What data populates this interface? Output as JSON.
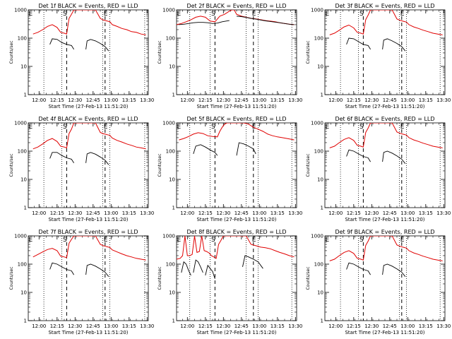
{
  "figure": {
    "y_axis_label": "Counts/sec",
    "x_axis_label": "Start Time (27-Feb-13 11:51:20)",
    "x_tick_labels": [
      "12:00",
      "12:15",
      "12:30",
      "12:45",
      "13:00",
      "13:15",
      "13:30"
    ],
    "y_tick_labels": [
      "1",
      "10",
      "100",
      "1000"
    ],
    "series_colors": {
      "events": "#000000",
      "lld": "#e00000"
    }
  },
  "chart_data": [
    {
      "type": "line",
      "title": "Det 1f BLACK = Events, RED = LLD",
      "markers": [
        "E",
        "S",
        "E"
      ],
      "x_unit": "minutes after 11:51:20",
      "ylim": [
        1,
        1000
      ],
      "xlim": [
        0,
        100
      ],
      "y_scale": "log",
      "series": [
        {
          "x": [
            4,
            8,
            12,
            16,
            20,
            24,
            27,
            30,
            32,
            34,
            36,
            38,
            40,
            42,
            44,
            48,
            52,
            56,
            60,
            62,
            64,
            66,
            68,
            70,
            74,
            78,
            82,
            86,
            90,
            94,
            98
          ],
          "y": [
            140,
            160,
            200,
            260,
            300,
            240,
            160,
            150,
            140,
            500,
            700,
            1000,
            1000,
            1000,
            1000,
            1000,
            1000,
            1000,
            500,
            450,
            420,
            400,
            380,
            300,
            260,
            220,
            200,
            170,
            160,
            140,
            130
          ]
        },
        {
          "x": [
            18,
            20,
            24,
            28,
            32,
            36,
            38
          ],
          "y": [
            60,
            95,
            90,
            70,
            60,
            55,
            40
          ]
        },
        {
          "x": [
            48,
            49,
            52,
            56,
            60,
            64,
            67
          ],
          "y": [
            40,
            80,
            90,
            80,
            65,
            50,
            35
          ]
        }
      ]
    },
    {
      "type": "line",
      "title": "Det 2f BLACK = Events, RED = LLD",
      "markers": [
        "E",
        "S",
        "E"
      ],
      "x_unit": "minutes after 11:51:20",
      "ylim": [
        1,
        1000
      ],
      "xlim": [
        0,
        100
      ],
      "y_scale": "log",
      "series": [
        {
          "x": [
            0,
            4,
            8,
            12,
            16,
            20,
            24,
            28,
            32,
            36,
            40,
            44,
            46,
            48,
            50,
            54,
            58,
            62,
            66,
            70,
            74,
            78,
            82,
            86,
            90,
            94,
            98
          ],
          "y": [
            300,
            330,
            380,
            450,
            550,
            600,
            550,
            400,
            380,
            600,
            700,
            900,
            1000,
            1000,
            700,
            600,
            550,
            500,
            480,
            450,
            420,
            400,
            380,
            350,
            330,
            310,
            300
          ]
        },
        {
          "x": [
            2,
            6,
            10,
            14,
            18,
            22,
            26,
            30,
            34,
            38,
            44
          ],
          "y": [
            300,
            310,
            330,
            350,
            360,
            360,
            350,
            330,
            340,
            380,
            420
          ]
        },
        {
          "x": [
            50,
            54,
            58,
            62,
            66,
            70,
            74,
            78,
            82,
            86,
            90,
            94,
            98
          ],
          "y": [
            600,
            580,
            540,
            500,
            470,
            440,
            410,
            390,
            370,
            350,
            330,
            310,
            300
          ]
        }
      ]
    },
    {
      "type": "line",
      "title": "Det 3f BLACK = Events, RED = LLD",
      "markers": [
        "E",
        "S",
        "E"
      ],
      "x_unit": "minutes after 11:51:20",
      "ylim": [
        1,
        1000
      ],
      "xlim": [
        0,
        100
      ],
      "y_scale": "log",
      "series": [
        {
          "x": [
            4,
            8,
            12,
            16,
            20,
            24,
            27,
            30,
            32,
            34,
            36,
            38,
            40,
            42,
            44,
            48,
            52,
            56,
            60,
            62,
            64,
            66,
            68,
            70,
            74,
            78,
            82,
            86,
            90,
            94,
            98
          ],
          "y": [
            130,
            150,
            190,
            250,
            290,
            230,
            160,
            150,
            140,
            450,
            650,
            1000,
            1000,
            1000,
            1000,
            1000,
            1000,
            1000,
            480,
            440,
            410,
            390,
            370,
            300,
            250,
            220,
            190,
            170,
            150,
            140,
            130
          ]
        },
        {
          "x": [
            18,
            20,
            24,
            28,
            32,
            36,
            38
          ],
          "y": [
            60,
            100,
            95,
            75,
            60,
            55,
            40
          ]
        },
        {
          "x": [
            48,
            49,
            52,
            56,
            60,
            64,
            67
          ],
          "y": [
            40,
            85,
            95,
            80,
            65,
            50,
            35
          ]
        }
      ]
    },
    {
      "type": "line",
      "title": "Det 4f BLACK = Events, RED = LLD",
      "markers": [
        "E",
        "S",
        "E"
      ],
      "x_unit": "minutes after 11:51:20",
      "ylim": [
        1,
        1000
      ],
      "xlim": [
        0,
        100
      ],
      "y_scale": "log",
      "series": [
        {
          "x": [
            4,
            8,
            12,
            16,
            20,
            24,
            27,
            30,
            32,
            34,
            36,
            38,
            40,
            42,
            44,
            48,
            52,
            56,
            60,
            62,
            64,
            66,
            68,
            70,
            74,
            78,
            82,
            86,
            90,
            94,
            98
          ],
          "y": [
            120,
            140,
            180,
            240,
            280,
            220,
            150,
            140,
            130,
            420,
            600,
            1000,
            1000,
            1000,
            1000,
            1000,
            1000,
            1000,
            460,
            420,
            400,
            380,
            360,
            290,
            240,
            210,
            180,
            160,
            140,
            130,
            120
          ]
        },
        {
          "x": [
            18,
            20,
            24,
            28,
            32,
            36,
            38
          ],
          "y": [
            55,
            90,
            90,
            70,
            58,
            52,
            38
          ]
        },
        {
          "x": [
            48,
            49,
            52,
            56,
            60,
            64,
            67
          ],
          "y": [
            38,
            80,
            90,
            78,
            62,
            48,
            33
          ]
        }
      ]
    },
    {
      "type": "line",
      "title": "Det 5f BLACK = Events, RED = LLD",
      "markers": [
        "E",
        "S",
        "E"
      ],
      "x_unit": "minutes after 11:51:20",
      "ylim": [
        1,
        1000
      ],
      "xlim": [
        0,
        100
      ],
      "y_scale": "log",
      "series": [
        {
          "x": [
            2,
            6,
            10,
            14,
            18,
            22,
            26,
            30,
            34,
            36,
            38,
            40,
            42,
            44,
            46,
            48,
            52,
            56,
            60,
            64,
            68,
            72,
            76,
            80,
            84,
            88,
            92,
            96,
            98
          ],
          "y": [
            250,
            280,
            330,
            400,
            450,
            420,
            350,
            330,
            320,
            500,
            700,
            900,
            1000,
            1000,
            1000,
            1000,
            1000,
            1000,
            900,
            700,
            600,
            500,
            400,
            350,
            320,
            300,
            280,
            260,
            250
          ]
        },
        {
          "x": [
            14,
            16,
            20,
            24,
            28,
            32,
            34
          ],
          "y": [
            80,
            150,
            170,
            140,
            110,
            90,
            70
          ]
        },
        {
          "x": [
            50,
            52,
            56,
            60,
            64,
            66
          ],
          "y": [
            70,
            200,
            180,
            150,
            120,
            80
          ]
        }
      ]
    },
    {
      "type": "line",
      "title": "Det 6f BLACK = Events, RED = LLD",
      "markers": [
        "E",
        "S",
        "E"
      ],
      "x_unit": "minutes after 11:51:20",
      "ylim": [
        1,
        1000
      ],
      "xlim": [
        0,
        100
      ],
      "y_scale": "log",
      "series": [
        {
          "x": [
            4,
            8,
            12,
            16,
            20,
            24,
            27,
            30,
            32,
            34,
            36,
            38,
            40,
            42,
            44,
            48,
            52,
            56,
            60,
            62,
            64,
            66,
            68,
            70,
            74,
            78,
            82,
            86,
            90,
            94,
            98
          ],
          "y": [
            130,
            150,
            200,
            260,
            300,
            240,
            160,
            150,
            140,
            460,
            650,
            1000,
            1000,
            1000,
            1000,
            1000,
            1000,
            1000,
            480,
            440,
            410,
            390,
            370,
            300,
            250,
            220,
            190,
            170,
            150,
            140,
            130
          ]
        },
        {
          "x": [
            18,
            20,
            24,
            28,
            32,
            36,
            38
          ],
          "y": [
            65,
            110,
            100,
            80,
            65,
            58,
            42
          ]
        },
        {
          "x": [
            48,
            49,
            52,
            56,
            60,
            64,
            67
          ],
          "y": [
            42,
            90,
            100,
            85,
            68,
            52,
            36
          ]
        }
      ]
    },
    {
      "type": "line",
      "title": "Det 7f BLACK = Events, RED = LLD",
      "markers": [
        "E",
        "S",
        "E"
      ],
      "x_unit": "minutes after 11:51:20",
      "ylim": [
        1,
        1000
      ],
      "xlim": [
        0,
        100
      ],
      "y_scale": "log",
      "series": [
        {
          "x": [
            4,
            8,
            12,
            16,
            20,
            24,
            27,
            30,
            32,
            34,
            36,
            38,
            40,
            42,
            44,
            48,
            52,
            56,
            60,
            62,
            64,
            66,
            68,
            70,
            74,
            78,
            82,
            86,
            90,
            94,
            98
          ],
          "y": [
            180,
            220,
            270,
            330,
            360,
            300,
            190,
            180,
            170,
            550,
            750,
            1000,
            1000,
            1000,
            1000,
            1000,
            1000,
            1000,
            500,
            460,
            430,
            410,
            390,
            320,
            270,
            230,
            200,
            180,
            160,
            150,
            140
          ]
        },
        {
          "x": [
            18,
            20,
            24,
            28,
            32,
            36,
            38
          ],
          "y": [
            65,
            110,
            100,
            80,
            65,
            58,
            42
          ]
        },
        {
          "x": [
            48,
            49,
            52,
            56,
            60,
            64,
            67
          ],
          "y": [
            42,
            90,
            100,
            85,
            68,
            52,
            36
          ]
        }
      ]
    },
    {
      "type": "line",
      "title": "Det 8f BLACK = Events, RED = LLD",
      "markers": [
        "E",
        "S",
        "E"
      ],
      "x_unit": "minutes after 11:51:20",
      "ylim": [
        1,
        1000
      ],
      "xlim": [
        0,
        100
      ],
      "y_scale": "log",
      "series": [
        {
          "x": [
            0,
            3,
            5,
            7,
            9,
            11,
            13,
            15,
            17,
            19,
            21,
            23,
            25,
            27,
            29,
            31,
            33,
            35,
            37,
            39,
            41,
            43,
            46,
            50,
            54,
            58,
            62,
            66,
            70,
            74,
            78,
            82,
            86,
            90,
            94,
            98
          ],
          "y": [
            150,
            160,
            200,
            1000,
            200,
            200,
            220,
            1000,
            260,
            280,
            1000,
            300,
            280,
            250,
            200,
            180,
            160,
            500,
            700,
            1000,
            1000,
            1000,
            1000,
            1000,
            1000,
            1000,
            500,
            450,
            400,
            380,
            350,
            300,
            260,
            230,
            200,
            180
          ]
        },
        {
          "x": [
            4,
            6,
            8,
            10,
            12
          ],
          "y": [
            50,
            120,
            100,
            60,
            40
          ]
        },
        {
          "x": [
            14,
            16,
            18,
            20,
            22
          ],
          "y": [
            50,
            140,
            120,
            80,
            50
          ]
        },
        {
          "x": [
            24,
            26,
            28,
            30,
            32
          ],
          "y": [
            40,
            90,
            70,
            55,
            30
          ]
        },
        {
          "x": [
            55,
            57,
            60,
            64,
            68,
            72
          ],
          "y": [
            80,
            200,
            180,
            150,
            120,
            70
          ]
        }
      ]
    },
    {
      "type": "line",
      "title": "Det 9f BLACK = Events, RED = LLD",
      "markers": [
        "E",
        "S",
        "E"
      ],
      "x_unit": "minutes after 11:51:20",
      "ylim": [
        1,
        1000
      ],
      "xlim": [
        0,
        100
      ],
      "y_scale": "log",
      "series": [
        {
          "x": [
            4,
            8,
            12,
            16,
            20,
            24,
            27,
            30,
            32,
            34,
            36,
            38,
            40,
            42,
            44,
            48,
            52,
            56,
            60,
            62,
            64,
            66,
            68,
            70,
            74,
            78,
            82,
            86,
            90,
            94,
            98
          ],
          "y": [
            130,
            150,
            200,
            260,
            300,
            240,
            160,
            150,
            140,
            460,
            650,
            1000,
            1000,
            1000,
            1000,
            1000,
            1000,
            1000,
            480,
            440,
            410,
            390,
            370,
            300,
            250,
            220,
            190,
            170,
            150,
            140,
            130
          ]
        },
        {
          "x": [
            18,
            20,
            24,
            28,
            32,
            36,
            38
          ],
          "y": [
            65,
            110,
            100,
            80,
            65,
            58,
            42
          ]
        },
        {
          "x": [
            48,
            49,
            52,
            56,
            60,
            64,
            67
          ],
          "y": [
            42,
            90,
            100,
            85,
            68,
            52,
            36
          ]
        }
      ]
    }
  ]
}
